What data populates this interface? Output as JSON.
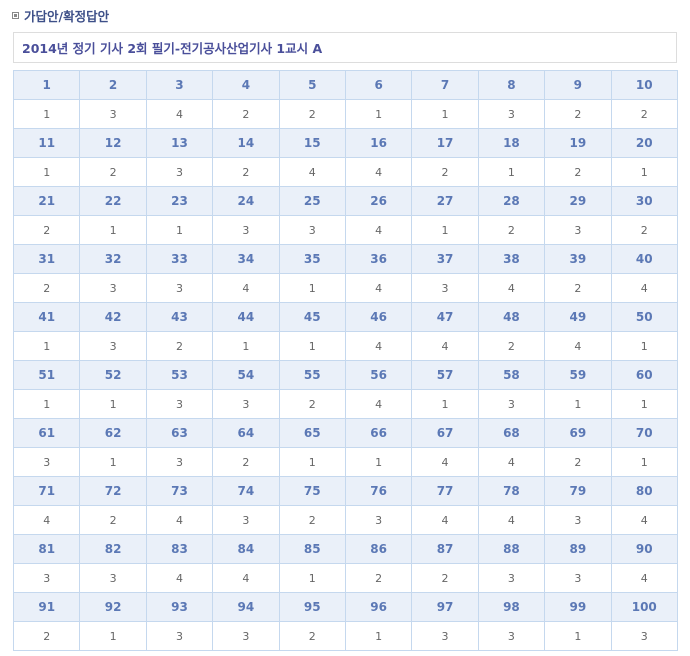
{
  "section": {
    "title": "가답안/확정답안",
    "icon": "square-bullet-icon"
  },
  "exam": {
    "title": "2014년 정기 기사 2회 필기-전기공사산업기사 1교시 A"
  },
  "colors": {
    "header_bg": "#eaf0f9",
    "header_text": "#5b78b5",
    "border": "#c5d8ee",
    "title_text": "#4a4f9a"
  },
  "answers": [
    {
      "q": "1",
      "a": "1"
    },
    {
      "q": "2",
      "a": "3"
    },
    {
      "q": "3",
      "a": "4"
    },
    {
      "q": "4",
      "a": "2"
    },
    {
      "q": "5",
      "a": "2"
    },
    {
      "q": "6",
      "a": "1"
    },
    {
      "q": "7",
      "a": "1"
    },
    {
      "q": "8",
      "a": "3"
    },
    {
      "q": "9",
      "a": "2"
    },
    {
      "q": "10",
      "a": "2"
    },
    {
      "q": "11",
      "a": "1"
    },
    {
      "q": "12",
      "a": "2"
    },
    {
      "q": "13",
      "a": "3"
    },
    {
      "q": "14",
      "a": "2"
    },
    {
      "q": "15",
      "a": "4"
    },
    {
      "q": "16",
      "a": "4"
    },
    {
      "q": "17",
      "a": "2"
    },
    {
      "q": "18",
      "a": "1"
    },
    {
      "q": "19",
      "a": "2"
    },
    {
      "q": "20",
      "a": "1"
    },
    {
      "q": "21",
      "a": "2"
    },
    {
      "q": "22",
      "a": "1"
    },
    {
      "q": "23",
      "a": "1"
    },
    {
      "q": "24",
      "a": "3"
    },
    {
      "q": "25",
      "a": "3"
    },
    {
      "q": "26",
      "a": "4"
    },
    {
      "q": "27",
      "a": "1"
    },
    {
      "q": "28",
      "a": "2"
    },
    {
      "q": "29",
      "a": "3"
    },
    {
      "q": "30",
      "a": "2"
    },
    {
      "q": "31",
      "a": "2"
    },
    {
      "q": "32",
      "a": "3"
    },
    {
      "q": "33",
      "a": "3"
    },
    {
      "q": "34",
      "a": "4"
    },
    {
      "q": "35",
      "a": "1"
    },
    {
      "q": "36",
      "a": "4"
    },
    {
      "q": "37",
      "a": "3"
    },
    {
      "q": "38",
      "a": "4"
    },
    {
      "q": "39",
      "a": "2"
    },
    {
      "q": "40",
      "a": "4"
    },
    {
      "q": "41",
      "a": "1"
    },
    {
      "q": "42",
      "a": "3"
    },
    {
      "q": "43",
      "a": "2"
    },
    {
      "q": "44",
      "a": "1"
    },
    {
      "q": "45",
      "a": "1"
    },
    {
      "q": "46",
      "a": "4"
    },
    {
      "q": "47",
      "a": "4"
    },
    {
      "q": "48",
      "a": "2"
    },
    {
      "q": "49",
      "a": "4"
    },
    {
      "q": "50",
      "a": "1"
    },
    {
      "q": "51",
      "a": "1"
    },
    {
      "q": "52",
      "a": "1"
    },
    {
      "q": "53",
      "a": "3"
    },
    {
      "q": "54",
      "a": "3"
    },
    {
      "q": "55",
      "a": "2"
    },
    {
      "q": "56",
      "a": "4"
    },
    {
      "q": "57",
      "a": "1"
    },
    {
      "q": "58",
      "a": "3"
    },
    {
      "q": "59",
      "a": "1"
    },
    {
      "q": "60",
      "a": "1"
    },
    {
      "q": "61",
      "a": "3"
    },
    {
      "q": "62",
      "a": "1"
    },
    {
      "q": "63",
      "a": "3"
    },
    {
      "q": "64",
      "a": "2"
    },
    {
      "q": "65",
      "a": "1"
    },
    {
      "q": "66",
      "a": "1"
    },
    {
      "q": "67",
      "a": "4"
    },
    {
      "q": "68",
      "a": "4"
    },
    {
      "q": "69",
      "a": "2"
    },
    {
      "q": "70",
      "a": "1"
    },
    {
      "q": "71",
      "a": "4"
    },
    {
      "q": "72",
      "a": "2"
    },
    {
      "q": "73",
      "a": "4"
    },
    {
      "q": "74",
      "a": "3"
    },
    {
      "q": "75",
      "a": "2"
    },
    {
      "q": "76",
      "a": "3"
    },
    {
      "q": "77",
      "a": "4"
    },
    {
      "q": "78",
      "a": "4"
    },
    {
      "q": "79",
      "a": "3"
    },
    {
      "q": "80",
      "a": "4"
    },
    {
      "q": "81",
      "a": "3"
    },
    {
      "q": "82",
      "a": "3"
    },
    {
      "q": "83",
      "a": "4"
    },
    {
      "q": "84",
      "a": "4"
    },
    {
      "q": "85",
      "a": "1"
    },
    {
      "q": "86",
      "a": "2"
    },
    {
      "q": "87",
      "a": "2"
    },
    {
      "q": "88",
      "a": "3"
    },
    {
      "q": "89",
      "a": "3"
    },
    {
      "q": "90",
      "a": "4"
    },
    {
      "q": "91",
      "a": "2"
    },
    {
      "q": "92",
      "a": "1"
    },
    {
      "q": "93",
      "a": "3"
    },
    {
      "q": "94",
      "a": "3"
    },
    {
      "q": "95",
      "a": "2"
    },
    {
      "q": "96",
      "a": "1"
    },
    {
      "q": "97",
      "a": "3"
    },
    {
      "q": "98",
      "a": "3"
    },
    {
      "q": "99",
      "a": "1"
    },
    {
      "q": "100",
      "a": "3"
    }
  ]
}
